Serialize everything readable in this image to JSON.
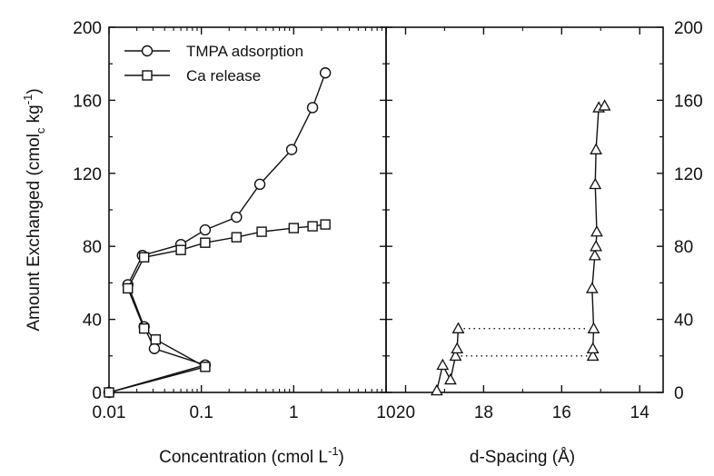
{
  "chart_data": [
    {
      "type": "line",
      "panel": "left",
      "x_scale": "log",
      "xlim": [
        0.01,
        10
      ],
      "ylim": [
        0,
        200
      ],
      "x_ticks": [
        "0.01",
        "0.1",
        "1",
        "10"
      ],
      "y_ticks": [
        "0",
        "40",
        "80",
        "120",
        "160",
        "200"
      ],
      "xlabel": "Concentration (cmol L",
      "xlabel_sup": "-1",
      "xlabel_end": ")",
      "ylabel": "Amount Exchanged (cmol",
      "ylabel_sub": "c",
      "ylabel_mid": " kg",
      "ylabel_sup": "-1",
      "ylabel_end": ")",
      "legend_position": "top-left",
      "series": [
        {
          "name": "TMPA adsorption",
          "marker": "circle",
          "x": [
            0.01,
            0.11,
            0.031,
            0.024,
            0.016,
            0.023,
            0.06,
            0.11,
            0.24,
            0.43,
            0.95,
            1.6,
            2.2
          ],
          "y": [
            0,
            15,
            24,
            36,
            59,
            75,
            81,
            89,
            96,
            114,
            133,
            156,
            175
          ]
        },
        {
          "name": "Ca release",
          "marker": "square",
          "x": [
            0.01,
            0.11,
            0.032,
            0.024,
            0.016,
            0.024,
            0.06,
            0.11,
            0.24,
            0.45,
            1.0,
            1.6,
            2.2
          ],
          "y": [
            0,
            14,
            29,
            35,
            57,
            74,
            78,
            82,
            85,
            88,
            90,
            91,
            92
          ]
        }
      ]
    },
    {
      "type": "line",
      "panel": "right",
      "x_reversed": true,
      "xlim": [
        20.5,
        13.4
      ],
      "ylim": [
        0,
        200
      ],
      "x_ticks": [
        20,
        18,
        16,
        14
      ],
      "y_ticks": [
        "0",
        "40",
        "80",
        "120",
        "160",
        "200"
      ],
      "xlabel": "d-Spacing (Å)",
      "marker": "triangle",
      "x": [
        19.2,
        19.05,
        18.85,
        18.72,
        18.68,
        18.65,
        15.2,
        15.2,
        15.18,
        15.22,
        15.15,
        15.12,
        15.1,
        15.14,
        15.12,
        15.05,
        14.9
      ],
      "y": [
        1,
        15,
        7,
        20,
        24,
        35,
        20,
        24,
        35,
        57,
        75,
        80,
        88,
        114,
        133,
        156,
        157
      ],
      "dotted_links": [
        {
          "from": [
            18.65,
            35
          ],
          "to": [
            15.18,
            35
          ]
        },
        {
          "from": [
            18.72,
            20
          ],
          "to": [
            15.2,
            20
          ]
        }
      ]
    }
  ]
}
